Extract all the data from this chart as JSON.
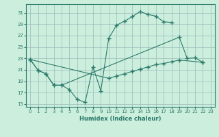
{
  "xlabel": "Humidex (Indice chaleur)",
  "bg_color": "#cceedd",
  "grid_color": "#99bbbb",
  "line_color": "#2a7a6a",
  "xlim": [
    -0.5,
    23.5
  ],
  "ylim": [
    14.5,
    32.5
  ],
  "yticks": [
    15,
    17,
    19,
    21,
    23,
    25,
    27,
    29,
    31
  ],
  "xticks": [
    0,
    1,
    2,
    3,
    4,
    5,
    6,
    7,
    8,
    9,
    10,
    11,
    12,
    13,
    14,
    15,
    16,
    17,
    18,
    19,
    20,
    21,
    22,
    23
  ],
  "line1_x": [
    0,
    1,
    2,
    3,
    4,
    5,
    6,
    7,
    8,
    9,
    10,
    11,
    12,
    13,
    14,
    15,
    16,
    17,
    18
  ],
  "line1_y": [
    22.8,
    20.9,
    20.3,
    18.3,
    18.3,
    17.5,
    15.8,
    15.3,
    21.5,
    17.3,
    26.5,
    28.8,
    29.5,
    30.3,
    31.2,
    30.7,
    30.4,
    29.4,
    29.3
  ],
  "line2_x": [
    0,
    1,
    2,
    3,
    4,
    19,
    20,
    21,
    22
  ],
  "line2_y": [
    22.8,
    20.9,
    20.3,
    18.3,
    18.3,
    26.7,
    23.0,
    23.1,
    22.3
  ],
  "line3_x": [
    0,
    10,
    11,
    12,
    13,
    14,
    15,
    16,
    17,
    18,
    19,
    22
  ],
  "line3_y": [
    22.8,
    19.5,
    19.9,
    20.3,
    20.7,
    21.1,
    21.5,
    21.9,
    22.1,
    22.4,
    22.7,
    22.3
  ]
}
